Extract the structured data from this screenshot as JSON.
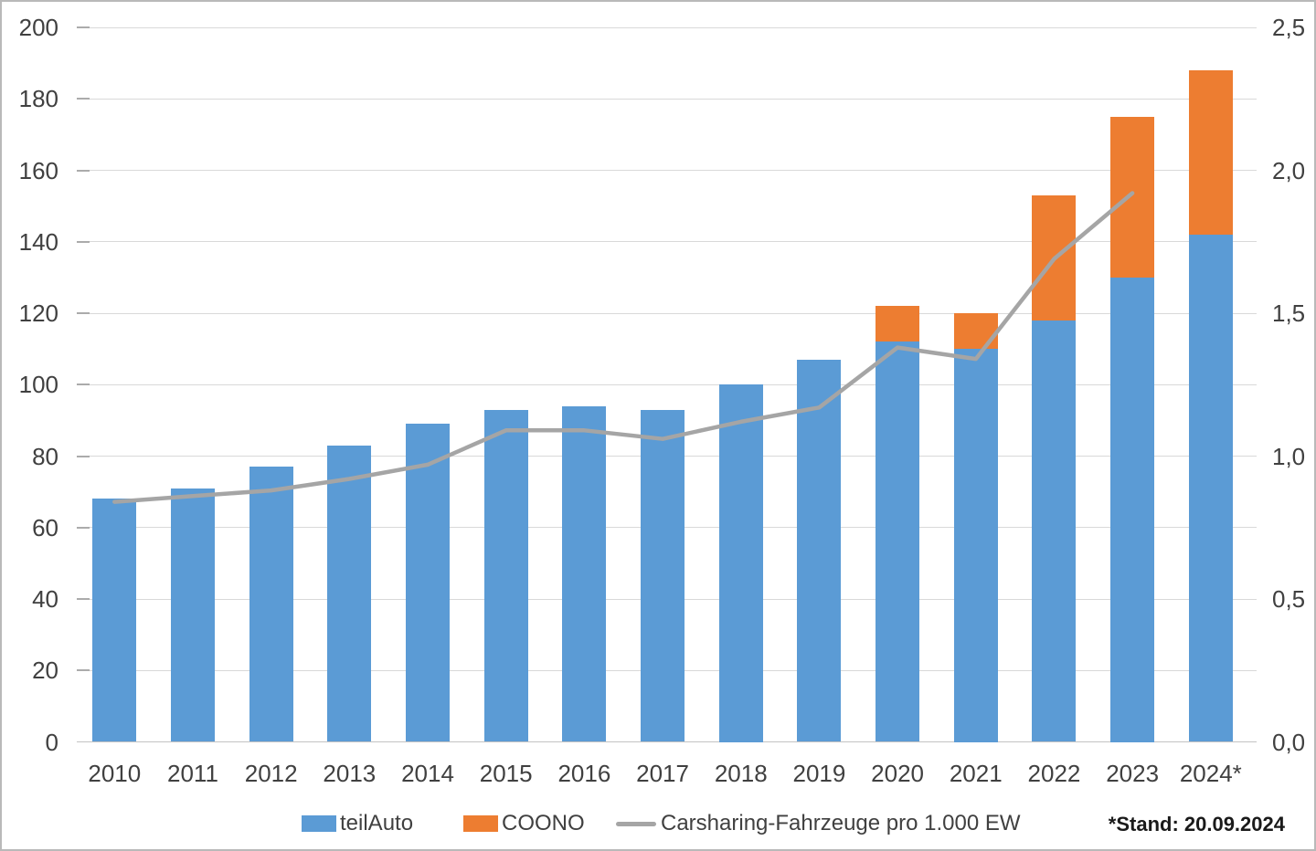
{
  "chart_data": {
    "type": "bar",
    "subtype": "stacked-bars-with-line",
    "title": "",
    "categories": [
      "2010",
      "2011",
      "2012",
      "2013",
      "2014",
      "2015",
      "2016",
      "2017",
      "2018",
      "2019",
      "2020",
      "2021",
      "2022",
      "2023",
      "2024*"
    ],
    "series": [
      {
        "name": "teilAuto",
        "type": "bar",
        "axis": "left",
        "color": "#5B9BD5",
        "values": [
          68,
          71,
          77,
          83,
          89,
          93,
          94,
          93,
          100,
          107,
          112,
          110,
          118,
          130,
          142
        ]
      },
      {
        "name": "COONO",
        "type": "bar",
        "axis": "left",
        "color": "#ED7D31",
        "values": [
          0,
          0,
          0,
          0,
          0,
          0,
          0,
          0,
          0,
          0,
          10,
          10,
          35,
          45,
          46
        ]
      },
      {
        "name": "Carsharing-Fahrzeuge pro 1.000 EW",
        "type": "line",
        "axis": "right",
        "color": "#A5A5A5",
        "values": [
          0.84,
          0.86,
          0.88,
          0.92,
          0.97,
          1.09,
          1.09,
          1.06,
          1.12,
          1.17,
          1.38,
          1.34,
          1.69,
          1.92,
          null
        ]
      }
    ],
    "left_axis": {
      "min": 0,
      "max": 200,
      "step": 20,
      "tick_labels": [
        "0",
        "20",
        "40",
        "60",
        "80",
        "100",
        "120",
        "140",
        "160",
        "180",
        "200"
      ]
    },
    "right_axis": {
      "min": 0,
      "max": 2.5,
      "step": 0.5,
      "tick_labels": [
        "0,0",
        "0,5",
        "1,0",
        "1,5",
        "2,0",
        "2,5"
      ]
    },
    "grid": true,
    "legend_position": "bottom"
  },
  "legend": {
    "items": [
      {
        "label": "teilAuto",
        "swatch": "rect",
        "color": "#5B9BD5"
      },
      {
        "label": "COONO",
        "swatch": "rect",
        "color": "#ED7D31"
      },
      {
        "label": "Carsharing-Fahrzeuge pro 1.000 EW",
        "swatch": "line",
        "color": "#A5A5A5"
      }
    ]
  },
  "footnote": "*Stand: 20.09.2024",
  "colors": {
    "teilauto_blue": "#5B9BD5",
    "coono_orange": "#ED7D31",
    "line_gray": "#A5A5A5",
    "gridline": "#D9D9D9",
    "axis_text": "#404040"
  }
}
